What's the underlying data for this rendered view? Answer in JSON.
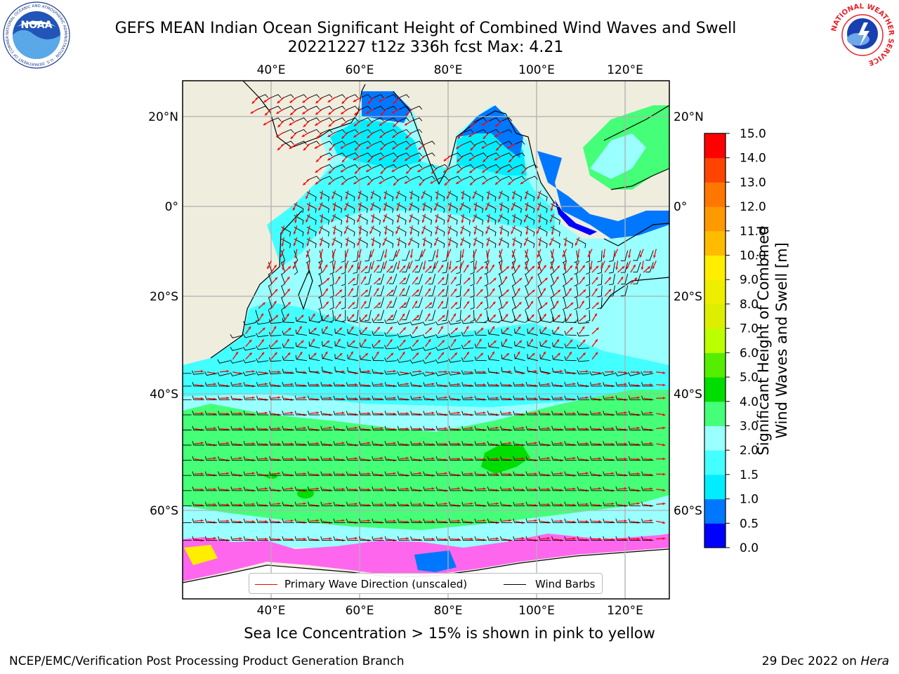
{
  "header": {
    "title_line1": "GEFS MEAN Indian Ocean Significant Height of Combined Wind Waves and Swell",
    "title_line2": "20221227 t12z 336h fcst   Max: 4.21"
  },
  "logos": {
    "left": {
      "name": "noaa-logo",
      "text": "NOAA",
      "ring_text": "NATIONAL OCEANIC AND ATMOSPHERIC ADMINISTRATION · U.S. DEPARTMENT OF COMMERCE"
    },
    "right": {
      "name": "national-weather-service-logo",
      "ring_text": "NATIONAL WEATHER SERVICE"
    }
  },
  "map": {
    "lon_range": [
      20,
      130
    ],
    "lat_range": [
      -73,
      28
    ],
    "lon_ticks": [
      {
        "value": 40,
        "label": "40°E"
      },
      {
        "value": 60,
        "label": "60°E"
      },
      {
        "value": 80,
        "label": "80°E"
      },
      {
        "value": 100,
        "label": "100°E"
      },
      {
        "value": 120,
        "label": "120°E"
      }
    ],
    "lat_ticks": [
      {
        "value": 20,
        "label": "20°N"
      },
      {
        "value": 0,
        "label": "0°"
      },
      {
        "value": -20,
        "label": "20°S"
      },
      {
        "value": -40,
        "label": "40°S"
      },
      {
        "value": -60,
        "label": "60°S"
      }
    ],
    "gridlines": true,
    "colors": {
      "land": "#efedde",
      "grid": "#b0b0b0",
      "wave_arrow": "#ff0000",
      "wind_barb": "#000000"
    }
  },
  "colorbar": {
    "label_line1": "Significant Height of Combined",
    "label_line2": "Wind Waves and Swell [m]",
    "range": [
      0,
      15
    ],
    "tick_labels": [
      "0.0",
      "0.5",
      "1.0",
      "1.5",
      "2.0",
      "3.0",
      "4.0",
      "5.0",
      "6.0",
      "7.0",
      "8.0",
      "9.0",
      "10.0",
      "11.0",
      "12.0",
      "13.0",
      "14.0",
      "15.0"
    ],
    "colors": [
      "#0000ff",
      "#0077ff",
      "#00eeff",
      "#44ffff",
      "#99ffff",
      "#44ff77",
      "#00dd00",
      "#55ee00",
      "#bbff00",
      "#ddee00",
      "#eeee00",
      "#ffee00",
      "#ffbb00",
      "#ff9900",
      "#ff7700",
      "#ff4400",
      "#ff0000"
    ]
  },
  "legend": {
    "items": [
      {
        "label": "Primary Wave Direction (unscaled)",
        "color": "#ff0000"
      },
      {
        "label": "Wind Barbs",
        "color": "#000000"
      }
    ]
  },
  "footer": {
    "ice_note": "Sea Ice Concentration > 15% is shown in pink to yellow",
    "branch": "NCEP/EMC/Verification Post Processing Product Generation Branch",
    "date_prefix": "29 Dec 2022 on",
    "host": "Hera"
  }
}
